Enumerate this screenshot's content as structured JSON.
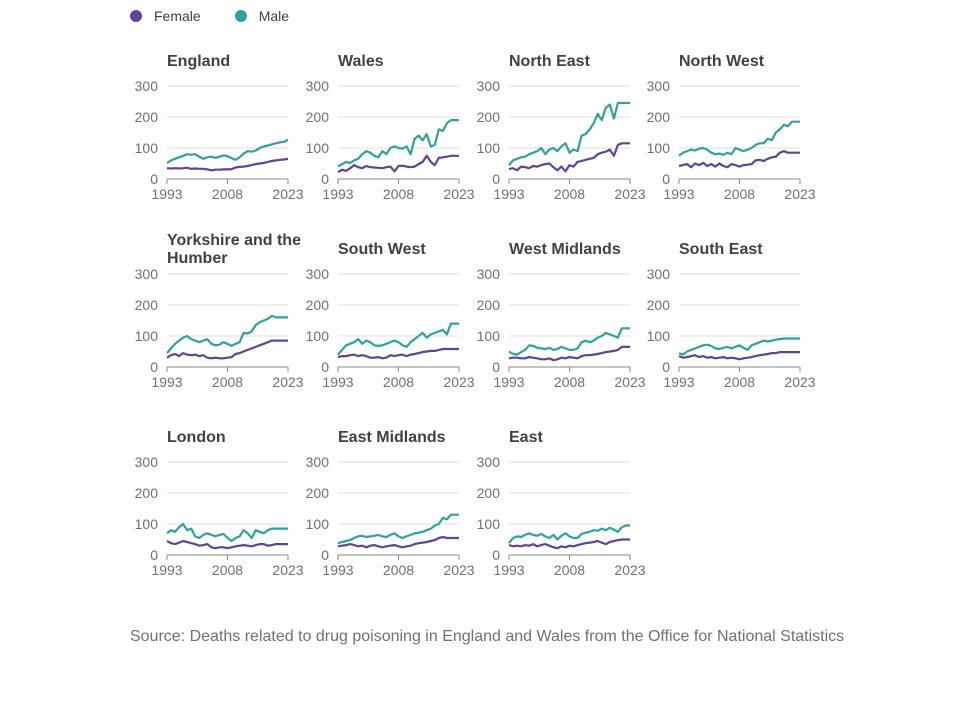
{
  "legend": [
    {
      "label": "Female",
      "color": "#5e4499"
    },
    {
      "label": "Male",
      "color": "#2ea29c"
    }
  ],
  "source": "Source: Deaths related to drug poisoning in England and Wales from the Office for National Statistics",
  "chart_data": {
    "type": "line",
    "layout": "small-multiples",
    "x": [
      1993,
      1994,
      1995,
      1996,
      1997,
      1998,
      1999,
      2000,
      2001,
      2002,
      2003,
      2004,
      2005,
      2006,
      2007,
      2008,
      2009,
      2010,
      2011,
      2012,
      2013,
      2014,
      2015,
      2016,
      2017,
      2018,
      2019,
      2020,
      2021,
      2022,
      2023
    ],
    "x_ticks": [
      1993,
      2008,
      2023
    ],
    "y_ticks": [
      0,
      100,
      200,
      300
    ],
    "ylim": [
      0,
      300
    ],
    "grid": true,
    "legend_position": "top-left",
    "panels": [
      {
        "title": "England",
        "female": [
          35,
          34,
          35,
          34,
          35,
          36,
          33,
          34,
          33,
          33,
          31,
          28,
          30,
          30,
          31,
          31,
          32,
          37,
          39,
          40,
          42,
          45,
          48,
          50,
          52,
          55,
          58,
          60,
          62,
          63,
          65
        ],
        "male": [
          52,
          60,
          65,
          70,
          75,
          80,
          78,
          80,
          72,
          65,
          70,
          72,
          68,
          72,
          76,
          74,
          67,
          62,
          70,
          82,
          90,
          88,
          92,
          100,
          105,
          108,
          112,
          115,
          118,
          120,
          127
        ]
      },
      {
        "title": "Wales",
        "female": [
          22,
          30,
          26,
          35,
          45,
          38,
          35,
          42,
          38,
          37,
          36,
          35,
          38,
          40,
          25,
          42,
          43,
          40,
          38,
          40,
          48,
          55,
          75,
          55,
          45,
          68,
          70,
          72,
          75,
          75,
          75
        ],
        "male": [
          40,
          48,
          55,
          52,
          60,
          65,
          80,
          90,
          85,
          75,
          70,
          90,
          80,
          100,
          105,
          100,
          98,
          105,
          80,
          130,
          140,
          125,
          145,
          105,
          110,
          160,
          155,
          180,
          190,
          190,
          190
        ]
      },
      {
        "title": "North East",
        "female": [
          32,
          35,
          28,
          40,
          38,
          35,
          42,
          40,
          45,
          48,
          50,
          38,
          28,
          40,
          25,
          45,
          40,
          55,
          58,
          62,
          65,
          68,
          80,
          85,
          88,
          95,
          75,
          110,
          115,
          115,
          115
        ],
        "male": [
          45,
          60,
          65,
          70,
          72,
          80,
          85,
          90,
          100,
          80,
          95,
          100,
          90,
          105,
          115,
          85,
          95,
          90,
          140,
          145,
          160,
          180,
          210,
          190,
          230,
          240,
          195,
          245,
          245,
          245,
          245
        ]
      },
      {
        "title": "North West",
        "female": [
          42,
          45,
          48,
          38,
          50,
          45,
          52,
          42,
          48,
          40,
          50,
          42,
          38,
          48,
          45,
          40,
          45,
          46,
          48,
          60,
          62,
          58,
          65,
          70,
          72,
          85,
          90,
          85,
          85,
          85,
          85
        ],
        "male": [
          75,
          85,
          90,
          95,
          92,
          98,
          100,
          95,
          85,
          80,
          82,
          78,
          85,
          80,
          100,
          95,
          90,
          95,
          100,
          110,
          115,
          115,
          130,
          125,
          150,
          160,
          175,
          170,
          185,
          185,
          185
        ]
      },
      {
        "title": "Yorkshire and the Humber",
        "female": [
          30,
          38,
          42,
          35,
          45,
          40,
          38,
          40,
          35,
          38,
          30,
          28,
          30,
          28,
          28,
          30,
          32,
          42,
          45,
          50,
          55,
          60,
          65,
          70,
          75,
          80,
          85,
          85,
          85,
          85,
          85
        ],
        "male": [
          45,
          60,
          75,
          85,
          95,
          100,
          90,
          85,
          80,
          85,
          90,
          75,
          70,
          72,
          80,
          75,
          68,
          75,
          80,
          110,
          108,
          115,
          135,
          145,
          150,
          155,
          165,
          160,
          160,
          160,
          160
        ]
      },
      {
        "title": "South West",
        "female": [
          32,
          35,
          35,
          38,
          40,
          35,
          38,
          35,
          30,
          30,
          32,
          28,
          30,
          38,
          35,
          38,
          40,
          35,
          40,
          42,
          45,
          48,
          50,
          52,
          52,
          55,
          58,
          58,
          58,
          58,
          58
        ],
        "male": [
          40,
          55,
          70,
          75,
          80,
          90,
          75,
          85,
          80,
          70,
          68,
          70,
          75,
          80,
          85,
          80,
          70,
          65,
          80,
          90,
          100,
          110,
          95,
          105,
          110,
          115,
          120,
          105,
          140,
          140,
          140
        ]
      },
      {
        "title": "West Midlands",
        "female": [
          28,
          30,
          30,
          28,
          28,
          32,
          30,
          28,
          25,
          25,
          28,
          22,
          25,
          30,
          28,
          32,
          30,
          28,
          35,
          38,
          38,
          40,
          42,
          45,
          48,
          50,
          52,
          55,
          65,
          65,
          65
        ],
        "male": [
          50,
          42,
          40,
          48,
          55,
          70,
          68,
          62,
          60,
          58,
          62,
          55,
          58,
          65,
          60,
          55,
          55,
          60,
          80,
          85,
          80,
          85,
          95,
          100,
          110,
          105,
          100,
          95,
          125,
          125,
          125
        ]
      },
      {
        "title": "South East",
        "female": [
          35,
          30,
          32,
          35,
          38,
          32,
          35,
          30,
          32,
          28,
          30,
          32,
          28,
          30,
          28,
          25,
          28,
          30,
          32,
          35,
          38,
          40,
          42,
          45,
          45,
          48,
          48,
          48,
          48,
          48,
          48
        ],
        "male": [
          45,
          40,
          50,
          55,
          60,
          65,
          70,
          72,
          68,
          60,
          58,
          62,
          65,
          60,
          65,
          70,
          62,
          55,
          70,
          75,
          80,
          85,
          82,
          85,
          88,
          90,
          92,
          92,
          92,
          92,
          92
        ]
      },
      {
        "title": "London",
        "female": [
          45,
          38,
          35,
          40,
          45,
          42,
          38,
          35,
          30,
          32,
          35,
          25,
          22,
          25,
          25,
          22,
          25,
          28,
          30,
          32,
          30,
          28,
          32,
          35,
          35,
          30,
          32,
          35,
          35,
          35,
          35
        ],
        "male": [
          70,
          80,
          75,
          90,
          100,
          80,
          85,
          60,
          55,
          65,
          70,
          65,
          60,
          65,
          68,
          55,
          45,
          55,
          60,
          80,
          70,
          55,
          80,
          75,
          70,
          80,
          85,
          85,
          85,
          85,
          85
        ],
        "note": ""
      },
      {
        "title": "East Midlands",
        "female": [
          28,
          30,
          32,
          35,
          32,
          28,
          30,
          25,
          30,
          32,
          28,
          25,
          28,
          30,
          32,
          28,
          25,
          28,
          30,
          35,
          38,
          40,
          42,
          45,
          48,
          55,
          58,
          55,
          55,
          55,
          55
        ],
        "male": [
          38,
          42,
          45,
          48,
          55,
          60,
          62,
          58,
          60,
          62,
          65,
          60,
          58,
          65,
          70,
          60,
          55,
          60,
          65,
          70,
          72,
          75,
          80,
          85,
          95,
          100,
          120,
          115,
          130,
          130,
          130
        ]
      },
      {
        "title": "East",
        "female": [
          32,
          28,
          30,
          28,
          32,
          30,
          35,
          28,
          32,
          35,
          30,
          25,
          22,
          28,
          25,
          30,
          28,
          32,
          35,
          38,
          40,
          42,
          45,
          40,
          35,
          42,
          45,
          48,
          50,
          50,
          50
        ],
        "male": [
          38,
          55,
          60,
          58,
          65,
          70,
          65,
          62,
          68,
          60,
          55,
          65,
          50,
          62,
          70,
          60,
          55,
          55,
          68,
          72,
          75,
          80,
          78,
          85,
          80,
          88,
          82,
          75,
          90,
          95,
          95
        ]
      }
    ]
  }
}
